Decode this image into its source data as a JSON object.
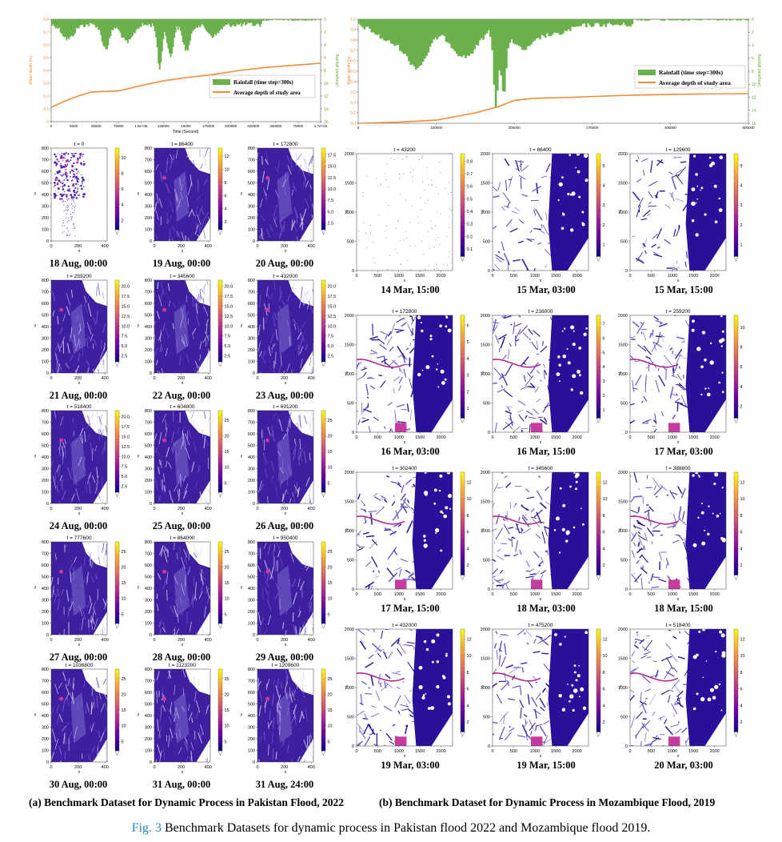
{
  "figure": {
    "label": "Fig. 3",
    "caption": "Benchmark Datasets for dynamic process in Pakistan flood 2022 and Mozambique flood 2019."
  },
  "left": {
    "subcaption": "(a) Benchmark Dataset for Dynamic Process in Pakistan Flood, 2022",
    "top_chart": {
      "y_left_label": "Water depth (m)",
      "y_right_label": "Rainfall (mm/hour)",
      "x_label": "Time (Second)",
      "x_ticks": [
        "0",
        "5000",
        "25000",
        "75000",
        "1.0e+05",
        "125000",
        "15000",
        "175000",
        "200000",
        "325000",
        "250000",
        "75000",
        "1.7e+03"
      ],
      "y_left_ticks": [
        "0.8",
        "0.7",
        "0.6",
        "0.5",
        "0.4",
        "0.3",
        "0.2",
        "0.1",
        "0"
      ],
      "y_right_ticks": [
        "0",
        "2",
        "4",
        "6",
        "8",
        "10",
        "12",
        "14",
        "16"
      ],
      "legend": [
        "Rainfall (time step=300s)",
        "Average depth of study area"
      ]
    },
    "panels": [
      {
        "t": "t = 0",
        "date": "18 Aug, 00:00",
        "cb": [
          "10",
          "8",
          "6",
          "4",
          "2"
        ]
      },
      {
        "t": "t = 86400",
        "date": "19 Aug, 00:00",
        "cb": [
          "12",
          "10",
          "8",
          "6",
          "4",
          "2"
        ]
      },
      {
        "t": "t = 172800",
        "date": "20 Aug, 00:00",
        "cb": [
          "17.5",
          "15.0",
          "12.5",
          "10.0",
          "7.5",
          "5.0",
          "2.5"
        ]
      },
      {
        "t": "t = 259200",
        "date": "21 Aug, 00:00",
        "cb": [
          "20.0",
          "17.5",
          "15.0",
          "12.5",
          "10.0",
          "7.5",
          "5.0",
          "2.5"
        ]
      },
      {
        "t": "t = 345600",
        "date": "22 Aug, 00:00",
        "cb": [
          "20.0",
          "17.5",
          "15.0",
          "12.5",
          "10.0",
          "7.5",
          "5.0",
          "2.5"
        ]
      },
      {
        "t": "t = 432000",
        "date": "23 Aug, 00:00",
        "cb": [
          "20.0",
          "17.5",
          "15.0",
          "12.5",
          "10.0",
          "7.5",
          "5.0",
          "2.5"
        ]
      },
      {
        "t": "t = 518400",
        "date": "24 Aug, 00:00",
        "cb": [
          "20.0",
          "17.5",
          "15.0",
          "12.5",
          "10.0",
          "7.5",
          "5.0",
          "2.5"
        ]
      },
      {
        "t": "t = 604800",
        "date": "25 Aug, 00:00",
        "cb": [
          "25",
          "20",
          "15",
          "10",
          "5"
        ]
      },
      {
        "t": "t = 691200",
        "date": "26 Aug, 00:00",
        "cb": [
          "25",
          "20",
          "15",
          "10",
          "5"
        ]
      },
      {
        "t": "t = 777600",
        "date": "27 Aug, 00:00",
        "cb": [
          "25",
          "20",
          "15",
          "10",
          "5"
        ]
      },
      {
        "t": "t = 864000",
        "date": "28 Aug, 00:00",
        "cb": [
          "25",
          "20",
          "15",
          "10",
          "5"
        ]
      },
      {
        "t": "t = 950400",
        "date": "29 Aug, 00:00",
        "cb": [
          "25",
          "20",
          "15",
          "10",
          "5"
        ]
      },
      {
        "t": "t = 1036800",
        "date": "30 Aug, 00:00",
        "cb": [
          "25",
          "20",
          "15",
          "10",
          "5"
        ]
      },
      {
        "t": "t = 1123200",
        "date": "31 Aug, 00:00",
        "cb": [
          "25",
          "20",
          "15",
          "10",
          "5"
        ]
      },
      {
        "t": "t = 1209600",
        "date": "31 Aug, 24:00",
        "cb": [
          "25",
          "20",
          "15",
          "10",
          "5"
        ]
      }
    ],
    "y_ticks": [
      "800",
      "700",
      "600",
      "500",
      "400",
      "300",
      "200",
      "100",
      "0"
    ],
    "x_ticks": [
      "0",
      "200",
      "400"
    ],
    "axis_x": "x",
    "axis_y": "y"
  },
  "right": {
    "subcaption": "(b) Benchmark Dataset for Dynamic Process in Mozambique Flood, 2019",
    "top_chart": {
      "y_left_label": "Water depth (m)",
      "y_right_label": "Rainfall (mm/hour)",
      "x_ticks": [
        "0",
        "100000",
        "200000",
        "275000",
        "400000",
        "600000"
      ],
      "y_left_ticks": [
        "1.0",
        "0.9",
        "0.8",
        "0.7",
        "0.6",
        "0.5",
        "0.4",
        "0.3",
        "0.2",
        "0.1",
        "0.0"
      ],
      "y_right_ticks": [
        "0",
        "2",
        "4",
        "6",
        "8",
        "10",
        "12",
        "14",
        "16"
      ],
      "legend": [
        "Rainfall (time step=300s)",
        "Average depth of study area"
      ]
    },
    "panels": [
      {
        "t": "t = 43200",
        "date": "14 Mar, 15:00",
        "cb": [
          "0.8",
          "0.7",
          "0.6",
          "0.5",
          "0.4",
          "0.3",
          "0.2",
          "0.1"
        ]
      },
      {
        "t": "t = 86400",
        "date": "15 Mar, 03:00",
        "cb": [
          "5",
          "4",
          "3",
          "2",
          "1"
        ]
      },
      {
        "t": "t = 129600",
        "date": "15 Mar, 15:00",
        "cb": [
          "5",
          "4",
          "3",
          "2",
          "1"
        ]
      },
      {
        "t": "t = 172800",
        "date": "16 Mar, 03:00",
        "cb": [
          "6",
          "5",
          "4",
          "3",
          "2",
          "1"
        ]
      },
      {
        "t": "t = 216000",
        "date": "16 Mar, 15:00",
        "cb": [
          "7",
          "6",
          "5",
          "4",
          "3",
          "2",
          "1"
        ]
      },
      {
        "t": "t = 259200",
        "date": "17 Mar, 03:00",
        "cb": [
          "10",
          "8",
          "6",
          "4",
          "2"
        ]
      },
      {
        "t": "t = 302400",
        "date": "17 Mar, 15:00",
        "cb": [
          "12",
          "10",
          "8",
          "6",
          "4",
          "2"
        ]
      },
      {
        "t": "t = 345600",
        "date": "18 Mar, 03:00",
        "cb": [
          "12",
          "10",
          "8",
          "6",
          "4",
          "2"
        ]
      },
      {
        "t": "t = 388800",
        "date": "18 Mar, 15:00",
        "cb": [
          "12",
          "10",
          "8",
          "6",
          "4",
          "2"
        ]
      },
      {
        "t": "t = 432000",
        "date": "19 Mar, 03:00",
        "cb": [
          "12",
          "10",
          "8",
          "6",
          "4",
          "2"
        ]
      },
      {
        "t": "t = 475200",
        "date": "19 Mar, 15:00",
        "cb": [
          "12",
          "10",
          "8",
          "6",
          "4",
          "2"
        ]
      },
      {
        "t": "t = 518400",
        "date": "20 Mar, 03:00",
        "cb": [
          "12",
          "10",
          "8",
          "6",
          "4",
          "2"
        ]
      }
    ],
    "y_ticks": [
      "2000",
      "1500",
      "1000",
      "500",
      "0"
    ],
    "x_ticks": [
      "0",
      "500",
      "1000",
      "1500",
      "2000"
    ],
    "axis_x": "x",
    "axis_y": "y"
  }
}
